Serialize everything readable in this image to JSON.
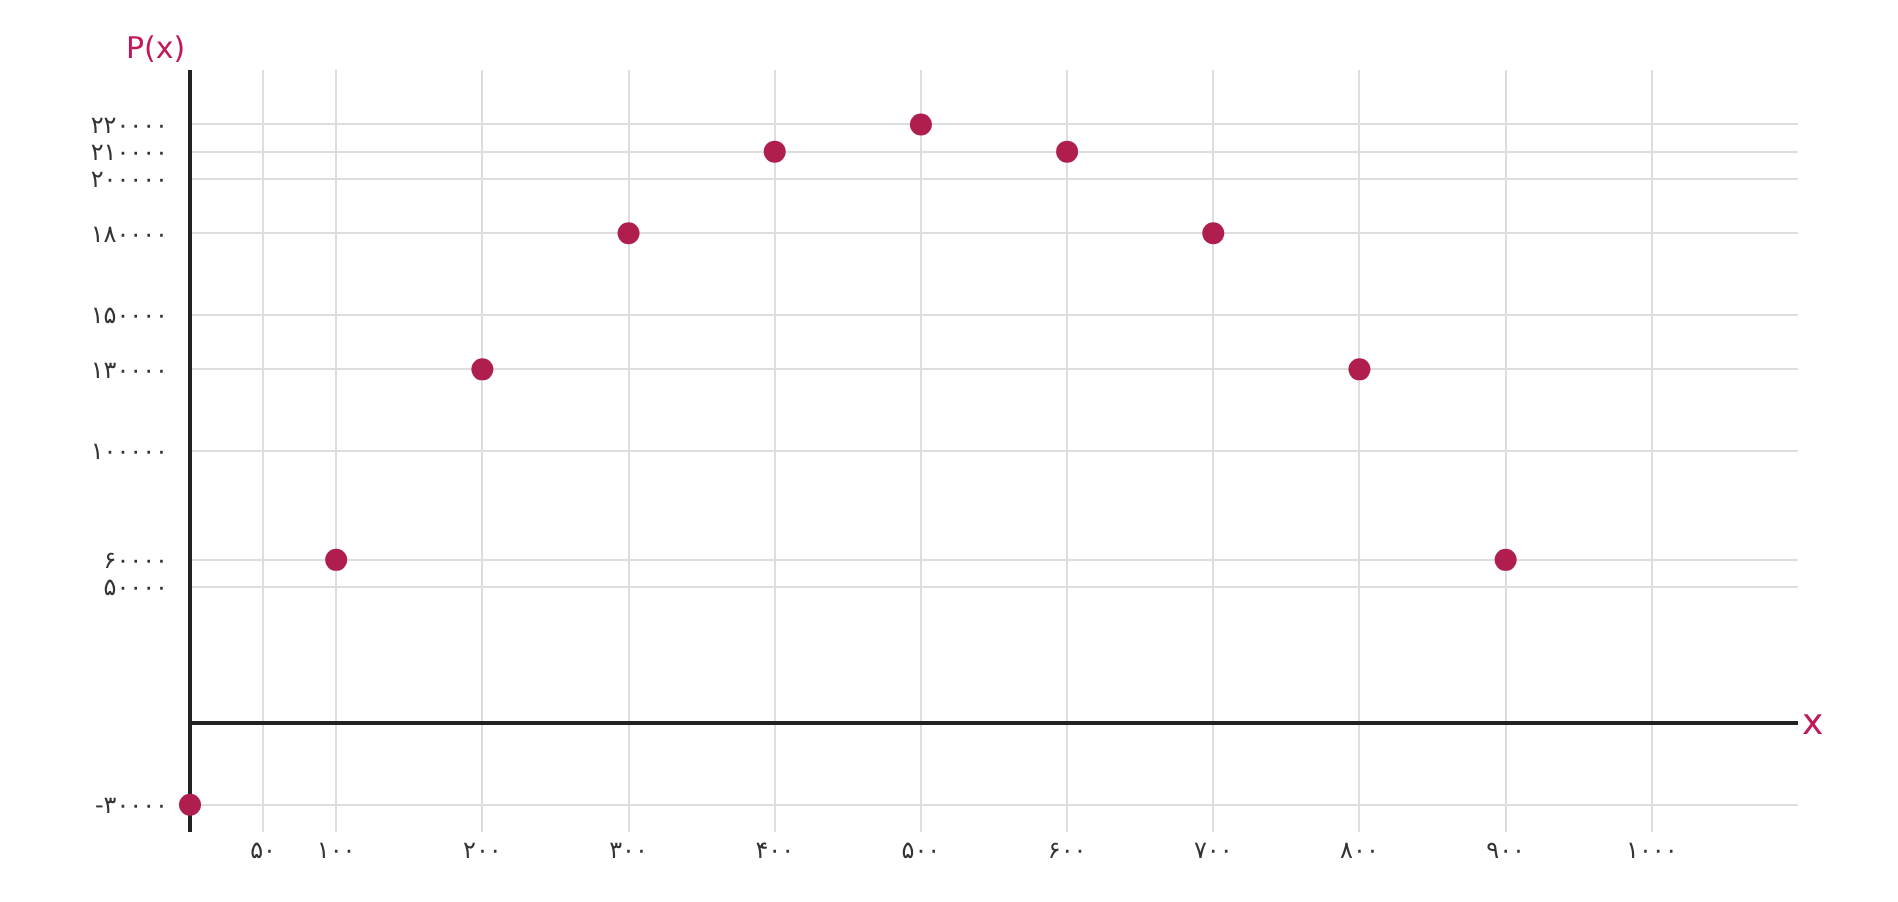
{
  "chart_data": {
    "type": "scatter",
    "xlabel": "x",
    "ylabel": "P(x)",
    "x": [
      0,
      100,
      200,
      300,
      400,
      500,
      600,
      700,
      800,
      900
    ],
    "values": [
      -30000,
      60000,
      130000,
      180000,
      210000,
      220000,
      210000,
      180000,
      130000,
      60000
    ],
    "color": "#b01e4e",
    "marker": "circle",
    "xlim": [
      0,
      1100
    ],
    "xticks": [
      {
        "value": 50,
        "label": "۵۰"
      },
      {
        "value": 100,
        "label": "۱۰۰"
      },
      {
        "value": 200,
        "label": "۲۰۰"
      },
      {
        "value": 300,
        "label": "۳۰۰"
      },
      {
        "value": 400,
        "label": "۴۰۰"
      },
      {
        "value": 500,
        "label": "۵۰۰"
      },
      {
        "value": 600,
        "label": "۶۰۰"
      },
      {
        "value": 700,
        "label": "۷۰۰"
      },
      {
        "value": 800,
        "label": "۸۰۰"
      },
      {
        "value": 900,
        "label": "۹۰۰"
      },
      {
        "value": 1000,
        "label": "۱۰۰۰"
      }
    ],
    "ylim": [
      -40000,
      240000
    ],
    "yticks": [
      {
        "value": -30000,
        "label": "-۳۰۰۰۰"
      },
      {
        "value": 50000,
        "label": "۵۰۰۰۰"
      },
      {
        "value": 60000,
        "label": "۶۰۰۰۰"
      },
      {
        "value": 100000,
        "label": "۱۰۰۰۰۰"
      },
      {
        "value": 130000,
        "label": "۱۳۰۰۰۰"
      },
      {
        "value": 150000,
        "label": "۱۵۰۰۰۰"
      },
      {
        "value": 180000,
        "label": "۱۸۰۰۰۰"
      },
      {
        "value": 200000,
        "label": "۲۰۰۰۰۰"
      },
      {
        "value": 210000,
        "label": "۲۱۰۰۰۰"
      },
      {
        "value": 220000,
        "label": "۲۲۰۰۰۰"
      }
    ],
    "grid": true
  }
}
